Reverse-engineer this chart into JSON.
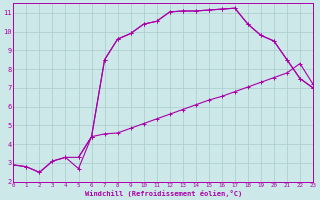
{
  "xlabel": "Windchill (Refroidissement éolien,°C)",
  "xlim": [
    0,
    23
  ],
  "ylim": [
    2,
    11.5
  ],
  "xticks": [
    0,
    1,
    2,
    3,
    4,
    5,
    6,
    7,
    8,
    9,
    10,
    11,
    12,
    13,
    14,
    15,
    16,
    17,
    18,
    19,
    20,
    21,
    22,
    23
  ],
  "yticks": [
    2,
    3,
    4,
    5,
    6,
    7,
    8,
    9,
    10,
    11
  ],
  "bg_color": "#cce8e8",
  "grid_color": "#aacccc",
  "line_color": "#aa00aa",
  "line1_x": [
    0,
    1,
    2,
    3,
    4,
    5,
    6,
    7,
    8,
    9,
    10,
    11,
    12,
    13,
    14,
    15,
    16,
    17,
    18,
    19,
    20,
    21,
    22,
    23
  ],
  "line1_y": [
    2.9,
    2.8,
    2.5,
    3.1,
    3.3,
    3.3,
    4.4,
    8.5,
    9.6,
    9.9,
    10.4,
    10.55,
    11.05,
    11.1,
    11.1,
    11.15,
    11.2,
    11.25,
    10.4,
    9.8,
    9.5,
    8.5,
    7.5,
    7.0
  ],
  "line2_x": [
    0,
    1,
    2,
    3,
    4,
    5,
    6,
    7,
    8,
    9,
    10,
    11,
    12,
    13,
    14,
    15,
    16,
    17,
    18,
    19,
    20,
    21,
    22,
    23
  ],
  "line2_y": [
    2.9,
    2.8,
    2.5,
    3.1,
    3.3,
    2.7,
    4.4,
    4.55,
    4.6,
    4.85,
    5.1,
    5.35,
    5.6,
    5.85,
    6.1,
    6.35,
    6.55,
    6.8,
    7.05,
    7.3,
    7.55,
    7.8,
    8.3,
    7.2
  ],
  "line3_x": [
    5,
    6,
    7,
    8,
    9,
    10,
    11,
    12,
    13,
    14,
    15,
    16,
    17,
    18,
    19,
    20,
    21,
    22,
    23
  ],
  "line3_y": [
    3.3,
    4.4,
    8.5,
    9.6,
    9.9,
    10.4,
    10.55,
    11.05,
    11.1,
    11.1,
    11.15,
    11.2,
    11.25,
    10.4,
    9.8,
    9.5,
    8.5,
    7.5,
    7.0
  ]
}
